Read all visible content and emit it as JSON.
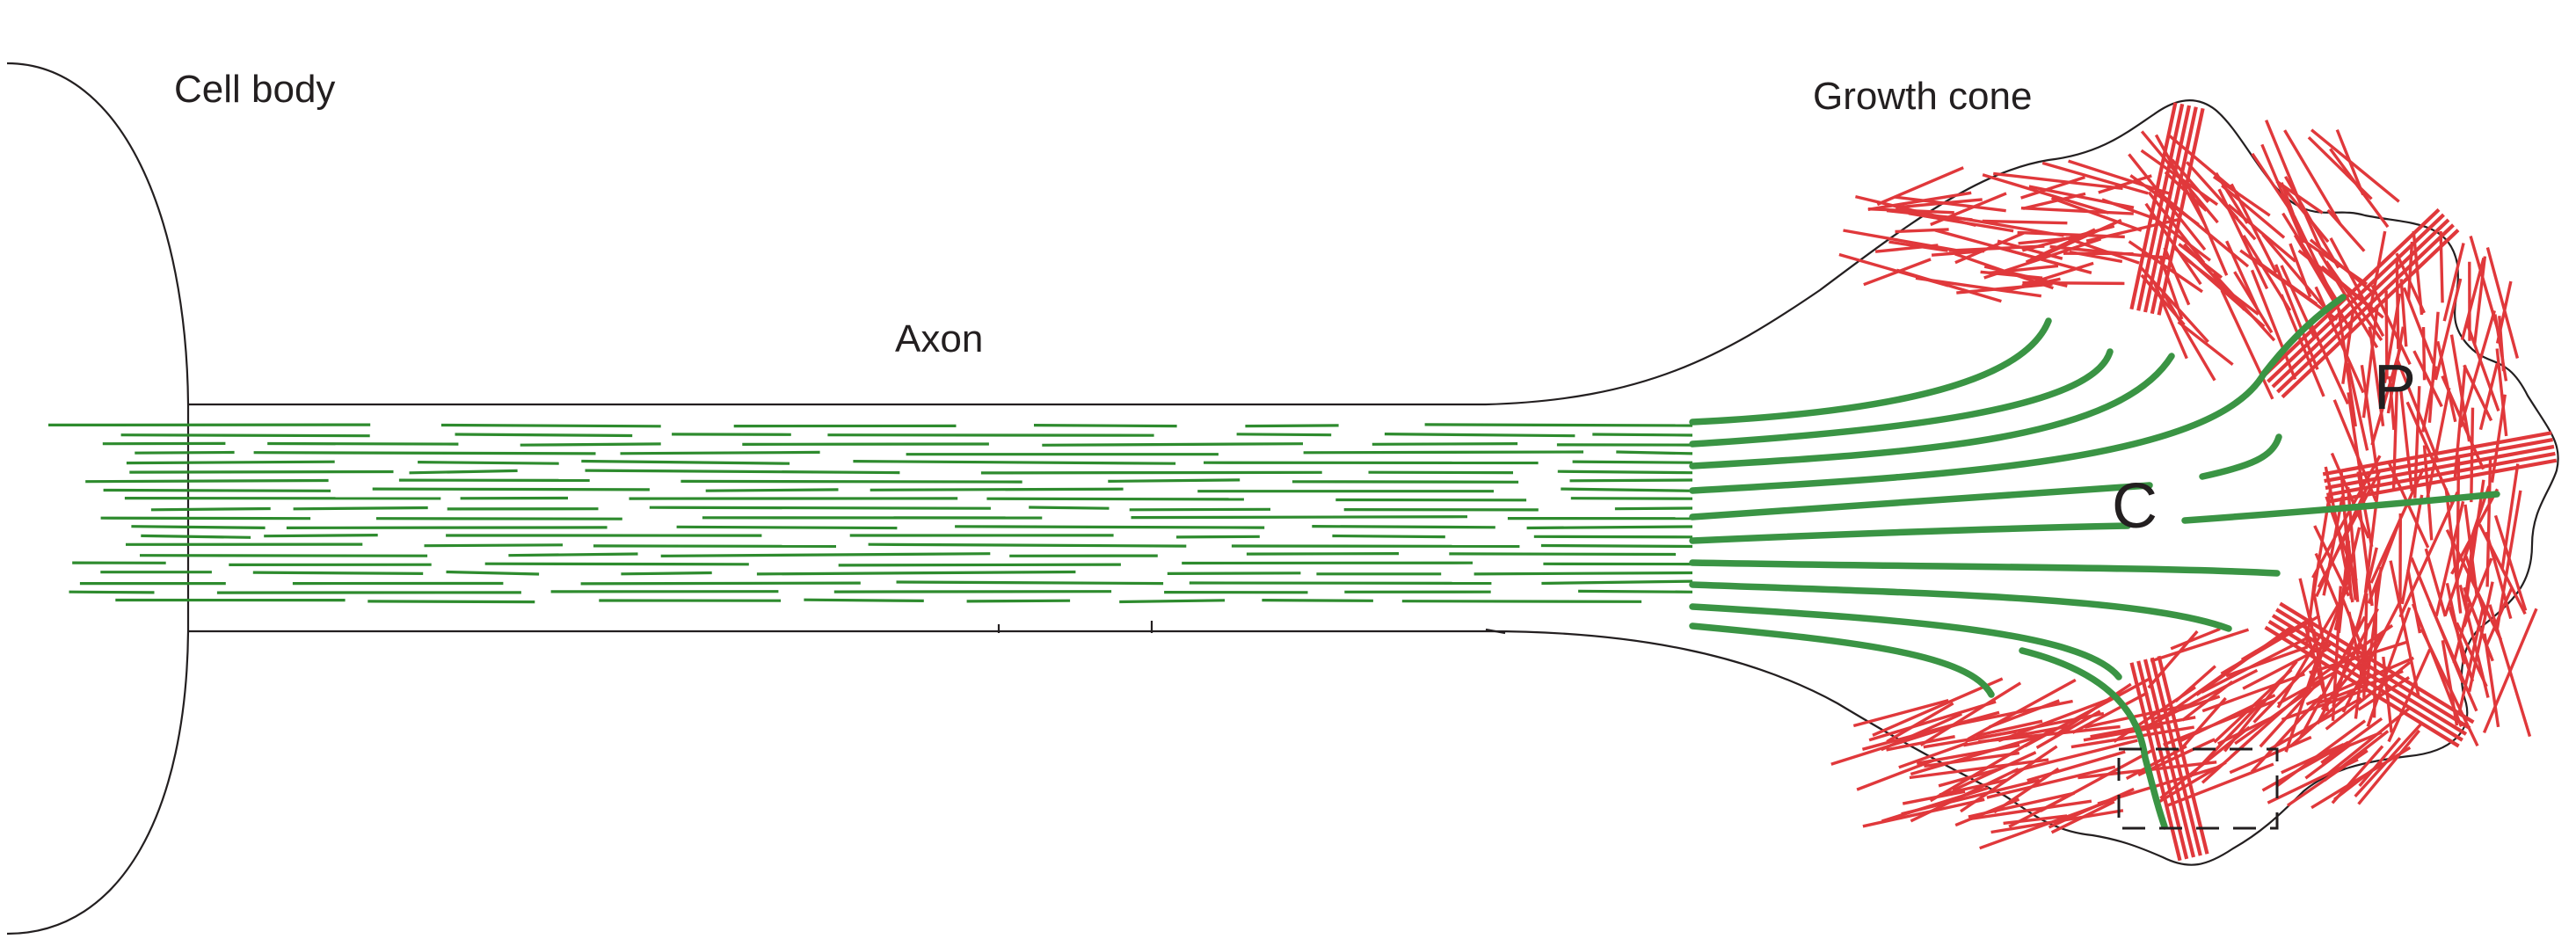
{
  "labels": {
    "cell_body": "Cell body",
    "axon": "Axon",
    "growth_cone": "Growth cone",
    "c_domain": "C",
    "p_domain": "P"
  },
  "colors": {
    "microtubules": "#2e8b2e",
    "actin": "#e0383b",
    "outline": "#231f20"
  }
}
